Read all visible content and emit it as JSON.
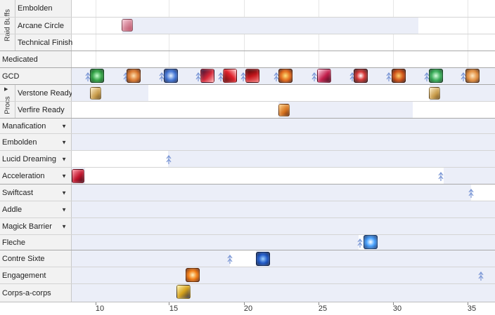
{
  "groups": {
    "raid_buffs": "Raid Buffs",
    "procs": "Procs"
  },
  "rows": {
    "embolden_raid": "Embolden",
    "arcane_circle": "Arcane Circle",
    "technical_finish": "Technical Finish",
    "medicated": "Medicated",
    "gcd": "GCD",
    "verstone_ready": "Verstone Ready",
    "verfire_ready": "Verfire Ready",
    "manafication": "Manafication",
    "embolden": "Embolden",
    "lucid_dreaming": "Lucid Dreaming",
    "acceleration": "Acceleration",
    "swiftcast": "Swiftcast",
    "addle": "Addle",
    "magick_barrier": "Magick Barrier",
    "fleche": "Fleche",
    "contre_sixte": "Contre Sixte",
    "engagement": "Engagement",
    "corps_a_corps": "Corps-a-corps"
  },
  "axis": {
    "ticks": [
      "10",
      "15",
      "20",
      "25",
      "30",
      "35"
    ],
    "unit": "seconds"
  },
  "icons": {
    "arcane_circle": "arcane-circle-icon",
    "gcd": [
      "verthunder-icon",
      "jolt-icon",
      "verholy-icon",
      "riposte-icon",
      "zwerchhau-icon",
      "redoublement-icon",
      "scorch-icon",
      "resolution-icon",
      "verflare-icon",
      "verfire-icon",
      "veraero-icon",
      "jolt-icon"
    ],
    "verstone": "verstone-icon",
    "verfire": "verfire-icon",
    "acceleration": "acceleration-icon",
    "fleche": "fleche-icon",
    "contre_sixte": "contre-sixte-icon",
    "engagement": "engagement-icon",
    "corps_a_corps": "corps-a-corps-icon"
  },
  "colors": {
    "label_bg": "#f2f2f2",
    "track_shade": "#ebeef8",
    "marker": "#7c98d6"
  }
}
